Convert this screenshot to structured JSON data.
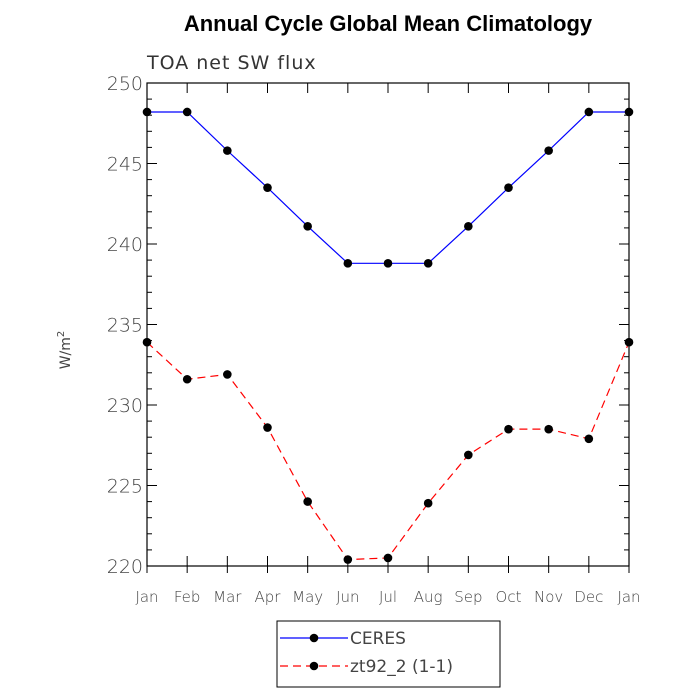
{
  "chart_data": {
    "type": "line",
    "title": "Annual Cycle Global Mean Climatology",
    "subtitle": "TOA net SW flux",
    "ylabel": "W/m",
    "ylabel_sup": "2",
    "xlabel": "",
    "categories": [
      "Jan",
      "Feb",
      "Mar",
      "Apr",
      "May",
      "Jun",
      "Jul",
      "Aug",
      "Sep",
      "Oct",
      "Nov",
      "Dec",
      "Jan"
    ],
    "ylim": [
      220,
      250
    ],
    "yticks": [
      220,
      225,
      230,
      235,
      240,
      245,
      250
    ],
    "ytick_labels": [
      "220",
      "225",
      "230",
      "235",
      "240",
      "245",
      "250"
    ],
    "grid": false,
    "legend_position": "bottom",
    "series": [
      {
        "name": "CERES",
        "color": "#0000ff",
        "style": "solid",
        "marker": "filled-circle",
        "values": [
          248.2,
          248.2,
          245.8,
          243.5,
          241.1,
          238.8,
          238.8,
          238.8,
          241.1,
          243.5,
          245.8,
          248.2,
          248.2
        ]
      },
      {
        "name": "zt92_2 (1-1)",
        "color": "#ff0000",
        "style": "dashed",
        "marker": "filled-circle",
        "values": [
          233.9,
          231.6,
          231.9,
          228.6,
          224.0,
          220.4,
          220.5,
          223.9,
          226.9,
          228.5,
          228.5,
          227.9,
          233.9
        ]
      }
    ]
  }
}
